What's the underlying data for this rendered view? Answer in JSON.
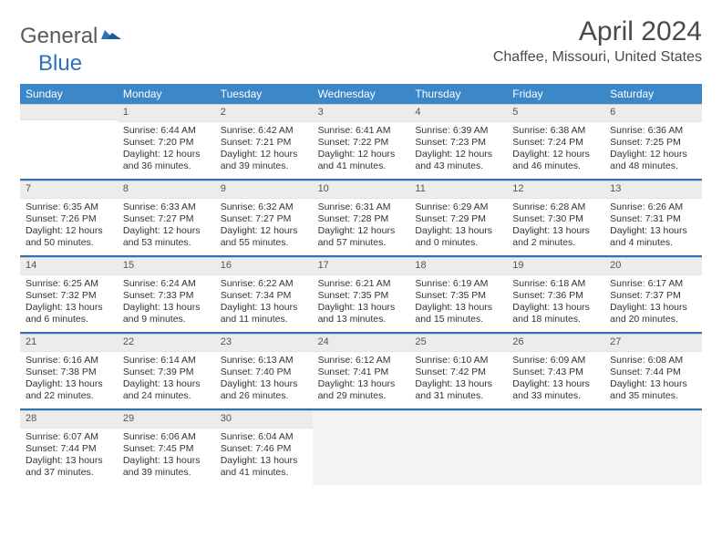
{
  "logo": {
    "part1": "General",
    "part2": "Blue"
  },
  "title": "April 2024",
  "location": "Chaffee, Missouri, United States",
  "colors": {
    "header_bg": "#3b87c8",
    "accent": "#2d72b5",
    "daynum_bg": "#ececec",
    "blank_bg": "#f4f4f4",
    "text": "#333333"
  },
  "weekdays": [
    "Sunday",
    "Monday",
    "Tuesday",
    "Wednesday",
    "Thursday",
    "Friday",
    "Saturday"
  ],
  "leading_blanks": 1,
  "trailing_blanks": 4,
  "days": [
    {
      "n": "1",
      "sunrise": "Sunrise: 6:44 AM",
      "sunset": "Sunset: 7:20 PM",
      "dl1": "Daylight: 12 hours",
      "dl2": "and 36 minutes."
    },
    {
      "n": "2",
      "sunrise": "Sunrise: 6:42 AM",
      "sunset": "Sunset: 7:21 PM",
      "dl1": "Daylight: 12 hours",
      "dl2": "and 39 minutes."
    },
    {
      "n": "3",
      "sunrise": "Sunrise: 6:41 AM",
      "sunset": "Sunset: 7:22 PM",
      "dl1": "Daylight: 12 hours",
      "dl2": "and 41 minutes."
    },
    {
      "n": "4",
      "sunrise": "Sunrise: 6:39 AM",
      "sunset": "Sunset: 7:23 PM",
      "dl1": "Daylight: 12 hours",
      "dl2": "and 43 minutes."
    },
    {
      "n": "5",
      "sunrise": "Sunrise: 6:38 AM",
      "sunset": "Sunset: 7:24 PM",
      "dl1": "Daylight: 12 hours",
      "dl2": "and 46 minutes."
    },
    {
      "n": "6",
      "sunrise": "Sunrise: 6:36 AM",
      "sunset": "Sunset: 7:25 PM",
      "dl1": "Daylight: 12 hours",
      "dl2": "and 48 minutes."
    },
    {
      "n": "7",
      "sunrise": "Sunrise: 6:35 AM",
      "sunset": "Sunset: 7:26 PM",
      "dl1": "Daylight: 12 hours",
      "dl2": "and 50 minutes."
    },
    {
      "n": "8",
      "sunrise": "Sunrise: 6:33 AM",
      "sunset": "Sunset: 7:27 PM",
      "dl1": "Daylight: 12 hours",
      "dl2": "and 53 minutes."
    },
    {
      "n": "9",
      "sunrise": "Sunrise: 6:32 AM",
      "sunset": "Sunset: 7:27 PM",
      "dl1": "Daylight: 12 hours",
      "dl2": "and 55 minutes."
    },
    {
      "n": "10",
      "sunrise": "Sunrise: 6:31 AM",
      "sunset": "Sunset: 7:28 PM",
      "dl1": "Daylight: 12 hours",
      "dl2": "and 57 minutes."
    },
    {
      "n": "11",
      "sunrise": "Sunrise: 6:29 AM",
      "sunset": "Sunset: 7:29 PM",
      "dl1": "Daylight: 13 hours",
      "dl2": "and 0 minutes."
    },
    {
      "n": "12",
      "sunrise": "Sunrise: 6:28 AM",
      "sunset": "Sunset: 7:30 PM",
      "dl1": "Daylight: 13 hours",
      "dl2": "and 2 minutes."
    },
    {
      "n": "13",
      "sunrise": "Sunrise: 6:26 AM",
      "sunset": "Sunset: 7:31 PM",
      "dl1": "Daylight: 13 hours",
      "dl2": "and 4 minutes."
    },
    {
      "n": "14",
      "sunrise": "Sunrise: 6:25 AM",
      "sunset": "Sunset: 7:32 PM",
      "dl1": "Daylight: 13 hours",
      "dl2": "and 6 minutes."
    },
    {
      "n": "15",
      "sunrise": "Sunrise: 6:24 AM",
      "sunset": "Sunset: 7:33 PM",
      "dl1": "Daylight: 13 hours",
      "dl2": "and 9 minutes."
    },
    {
      "n": "16",
      "sunrise": "Sunrise: 6:22 AM",
      "sunset": "Sunset: 7:34 PM",
      "dl1": "Daylight: 13 hours",
      "dl2": "and 11 minutes."
    },
    {
      "n": "17",
      "sunrise": "Sunrise: 6:21 AM",
      "sunset": "Sunset: 7:35 PM",
      "dl1": "Daylight: 13 hours",
      "dl2": "and 13 minutes."
    },
    {
      "n": "18",
      "sunrise": "Sunrise: 6:19 AM",
      "sunset": "Sunset: 7:35 PM",
      "dl1": "Daylight: 13 hours",
      "dl2": "and 15 minutes."
    },
    {
      "n": "19",
      "sunrise": "Sunrise: 6:18 AM",
      "sunset": "Sunset: 7:36 PM",
      "dl1": "Daylight: 13 hours",
      "dl2": "and 18 minutes."
    },
    {
      "n": "20",
      "sunrise": "Sunrise: 6:17 AM",
      "sunset": "Sunset: 7:37 PM",
      "dl1": "Daylight: 13 hours",
      "dl2": "and 20 minutes."
    },
    {
      "n": "21",
      "sunrise": "Sunrise: 6:16 AM",
      "sunset": "Sunset: 7:38 PM",
      "dl1": "Daylight: 13 hours",
      "dl2": "and 22 minutes."
    },
    {
      "n": "22",
      "sunrise": "Sunrise: 6:14 AM",
      "sunset": "Sunset: 7:39 PM",
      "dl1": "Daylight: 13 hours",
      "dl2": "and 24 minutes."
    },
    {
      "n": "23",
      "sunrise": "Sunrise: 6:13 AM",
      "sunset": "Sunset: 7:40 PM",
      "dl1": "Daylight: 13 hours",
      "dl2": "and 26 minutes."
    },
    {
      "n": "24",
      "sunrise": "Sunrise: 6:12 AM",
      "sunset": "Sunset: 7:41 PM",
      "dl1": "Daylight: 13 hours",
      "dl2": "and 29 minutes."
    },
    {
      "n": "25",
      "sunrise": "Sunrise: 6:10 AM",
      "sunset": "Sunset: 7:42 PM",
      "dl1": "Daylight: 13 hours",
      "dl2": "and 31 minutes."
    },
    {
      "n": "26",
      "sunrise": "Sunrise: 6:09 AM",
      "sunset": "Sunset: 7:43 PM",
      "dl1": "Daylight: 13 hours",
      "dl2": "and 33 minutes."
    },
    {
      "n": "27",
      "sunrise": "Sunrise: 6:08 AM",
      "sunset": "Sunset: 7:44 PM",
      "dl1": "Daylight: 13 hours",
      "dl2": "and 35 minutes."
    },
    {
      "n": "28",
      "sunrise": "Sunrise: 6:07 AM",
      "sunset": "Sunset: 7:44 PM",
      "dl1": "Daylight: 13 hours",
      "dl2": "and 37 minutes."
    },
    {
      "n": "29",
      "sunrise": "Sunrise: 6:06 AM",
      "sunset": "Sunset: 7:45 PM",
      "dl1": "Daylight: 13 hours",
      "dl2": "and 39 minutes."
    },
    {
      "n": "30",
      "sunrise": "Sunrise: 6:04 AM",
      "sunset": "Sunset: 7:46 PM",
      "dl1": "Daylight: 13 hours",
      "dl2": "and 41 minutes."
    }
  ]
}
